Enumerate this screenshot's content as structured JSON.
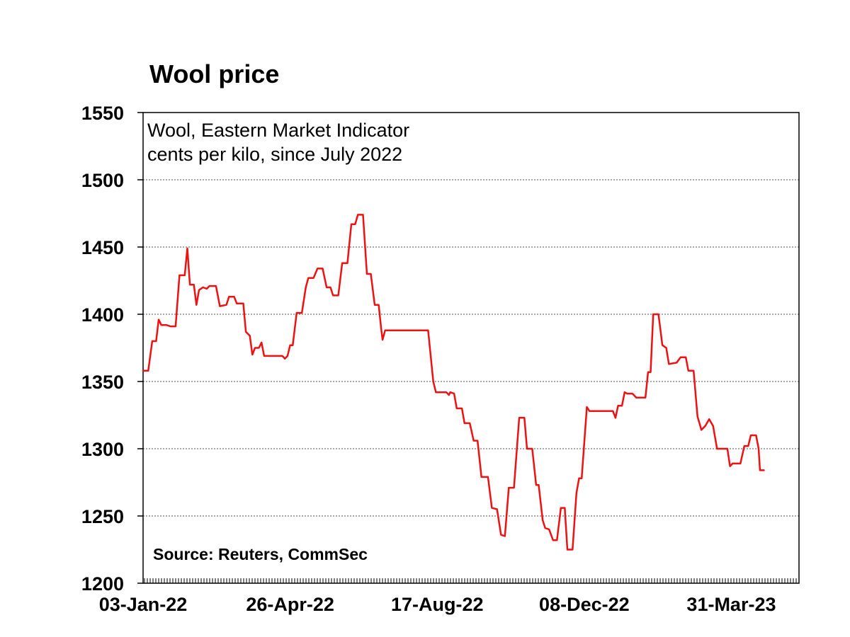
{
  "chart_data": {
    "type": "line",
    "title": "Wool price",
    "subtitle_lines": [
      "Wool, Eastern Market Indicator",
      "cents per kilo, since July 2022"
    ],
    "source": "Source: Reuters, CommSec",
    "xlabel": "",
    "ylabel": "",
    "ylim": [
      1200,
      1550
    ],
    "yticks": [
      1200,
      1250,
      1300,
      1350,
      1400,
      1450,
      1500,
      1550
    ],
    "xlim": [
      "2022-01-03",
      "2023-05-22"
    ],
    "xticks": [
      {
        "date": "2022-01-03",
        "label": "03-Jan-22"
      },
      {
        "date": "2022-04-26",
        "label": "26-Apr-22"
      },
      {
        "date": "2022-08-17",
        "label": "17-Aug-22"
      },
      {
        "date": "2022-12-08",
        "label": "08-Dec-22"
      },
      {
        "date": "2023-03-31",
        "label": "31-Mar-23"
      }
    ],
    "grid": "horizontal-dotted",
    "legend": "none",
    "series": [
      {
        "color": "#ee1111",
        "points": [
          [
            "2022-01-03",
            1358
          ],
          [
            "2022-01-07",
            1358
          ],
          [
            "2022-01-10",
            1380
          ],
          [
            "2022-01-13",
            1380
          ],
          [
            "2022-01-15",
            1396
          ],
          [
            "2022-01-17",
            1392
          ],
          [
            "2022-01-21",
            1392
          ],
          [
            "2022-01-24",
            1391
          ],
          [
            "2022-01-28",
            1391
          ],
          [
            "2022-01-31",
            1429
          ],
          [
            "2022-02-04",
            1429
          ],
          [
            "2022-02-06",
            1449
          ],
          [
            "2022-02-08",
            1422
          ],
          [
            "2022-02-11",
            1422
          ],
          [
            "2022-02-13",
            1407
          ],
          [
            "2022-02-15",
            1418
          ],
          [
            "2022-02-18",
            1420
          ],
          [
            "2022-02-21",
            1419
          ],
          [
            "2022-02-23",
            1421
          ],
          [
            "2022-02-28",
            1421
          ],
          [
            "2022-03-03",
            1406
          ],
          [
            "2022-03-08",
            1407
          ],
          [
            "2022-03-10",
            1413
          ],
          [
            "2022-03-14",
            1413
          ],
          [
            "2022-03-16",
            1408
          ],
          [
            "2022-03-21",
            1408
          ],
          [
            "2022-03-23",
            1387
          ],
          [
            "2022-03-26",
            1384
          ],
          [
            "2022-03-28",
            1370
          ],
          [
            "2022-03-30",
            1375
          ],
          [
            "2022-04-02",
            1375
          ],
          [
            "2022-04-04",
            1379
          ],
          [
            "2022-04-06",
            1369
          ],
          [
            "2022-04-20",
            1369
          ],
          [
            "2022-04-22",
            1367
          ],
          [
            "2022-04-24",
            1369
          ],
          [
            "2022-04-26",
            1377
          ],
          [
            "2022-04-28",
            1377
          ],
          [
            "2022-05-01",
            1401
          ],
          [
            "2022-05-05",
            1401
          ],
          [
            "2022-05-08",
            1420
          ],
          [
            "2022-05-10",
            1427
          ],
          [
            "2022-05-14",
            1427
          ],
          [
            "2022-05-17",
            1434
          ],
          [
            "2022-05-21",
            1434
          ],
          [
            "2022-05-24",
            1420
          ],
          [
            "2022-05-27",
            1420
          ],
          [
            "2022-05-29",
            1414
          ],
          [
            "2022-06-02",
            1414
          ],
          [
            "2022-06-05",
            1438
          ],
          [
            "2022-06-09",
            1438
          ],
          [
            "2022-06-12",
            1467
          ],
          [
            "2022-06-15",
            1467
          ],
          [
            "2022-06-17",
            1474
          ],
          [
            "2022-06-21",
            1474
          ],
          [
            "2022-06-24",
            1430
          ],
          [
            "2022-06-27",
            1430
          ],
          [
            "2022-06-30",
            1407
          ],
          [
            "2022-07-03",
            1407
          ],
          [
            "2022-07-05",
            1389
          ],
          [
            "2022-07-06",
            1381
          ],
          [
            "2022-07-08",
            1388
          ],
          [
            "2022-08-10",
            1388
          ],
          [
            "2022-08-14",
            1350
          ],
          [
            "2022-08-16",
            1342
          ],
          [
            "2022-08-24",
            1342
          ],
          [
            "2022-08-26",
            1340
          ],
          [
            "2022-08-27",
            1342
          ],
          [
            "2022-08-30",
            1341
          ],
          [
            "2022-09-01",
            1330
          ],
          [
            "2022-09-05",
            1330
          ],
          [
            "2022-09-07",
            1319
          ],
          [
            "2022-09-11",
            1319
          ],
          [
            "2022-09-14",
            1306
          ],
          [
            "2022-09-17",
            1306
          ],
          [
            "2022-09-20",
            1279
          ],
          [
            "2022-09-25",
            1279
          ],
          [
            "2022-09-28",
            1256
          ],
          [
            "2022-10-02",
            1255
          ],
          [
            "2022-10-05",
            1236
          ],
          [
            "2022-10-08",
            1235
          ],
          [
            "2022-10-11",
            1271
          ],
          [
            "2022-10-15",
            1271
          ],
          [
            "2022-10-19",
            1323
          ],
          [
            "2022-10-23",
            1323
          ],
          [
            "2022-10-25",
            1300
          ],
          [
            "2022-10-29",
            1300
          ],
          [
            "2022-11-01",
            1273
          ],
          [
            "2022-11-03",
            1273
          ],
          [
            "2022-11-06",
            1247
          ],
          [
            "2022-11-08",
            1241
          ],
          [
            "2022-11-11",
            1240
          ],
          [
            "2022-11-14",
            1232
          ],
          [
            "2022-11-17",
            1232
          ],
          [
            "2022-11-20",
            1256
          ],
          [
            "2022-11-23",
            1256
          ],
          [
            "2022-11-25",
            1225
          ],
          [
            "2022-11-29",
            1225
          ],
          [
            "2022-12-02",
            1267
          ],
          [
            "2022-12-04",
            1278
          ],
          [
            "2022-12-06",
            1278
          ],
          [
            "2022-12-10",
            1331
          ],
          [
            "2022-12-12",
            1328
          ],
          [
            "2022-12-30",
            1328
          ],
          [
            "2023-01-01",
            1323
          ],
          [
            "2023-01-03",
            1332
          ],
          [
            "2023-01-06",
            1332
          ],
          [
            "2023-01-08",
            1342
          ],
          [
            "2023-01-10",
            1341
          ],
          [
            "2023-01-14",
            1341
          ],
          [
            "2023-01-17",
            1338
          ],
          [
            "2023-01-24",
            1338
          ],
          [
            "2023-01-26",
            1357
          ],
          [
            "2023-01-28",
            1357
          ],
          [
            "2023-01-30",
            1400
          ],
          [
            "2023-02-03",
            1400
          ],
          [
            "2023-02-06",
            1377
          ],
          [
            "2023-02-09",
            1375
          ],
          [
            "2023-02-11",
            1363
          ],
          [
            "2023-02-17",
            1364
          ],
          [
            "2023-02-20",
            1368
          ],
          [
            "2023-02-24",
            1368
          ],
          [
            "2023-02-26",
            1358
          ],
          [
            "2023-03-02",
            1358
          ],
          [
            "2023-03-05",
            1324
          ],
          [
            "2023-03-08",
            1314
          ],
          [
            "2023-03-11",
            1317
          ],
          [
            "2023-03-14",
            1322
          ],
          [
            "2023-03-17",
            1317
          ],
          [
            "2023-03-20",
            1300
          ],
          [
            "2023-03-28",
            1300
          ],
          [
            "2023-03-30",
            1287
          ],
          [
            "2023-04-01",
            1289
          ],
          [
            "2023-04-07",
            1289
          ],
          [
            "2023-04-10",
            1302
          ],
          [
            "2023-04-13",
            1302
          ],
          [
            "2023-04-15",
            1310
          ],
          [
            "2023-04-19",
            1310
          ],
          [
            "2023-04-21",
            1300
          ],
          [
            "2023-04-22",
            1284
          ],
          [
            "2023-04-25",
            1284
          ]
        ]
      }
    ]
  }
}
